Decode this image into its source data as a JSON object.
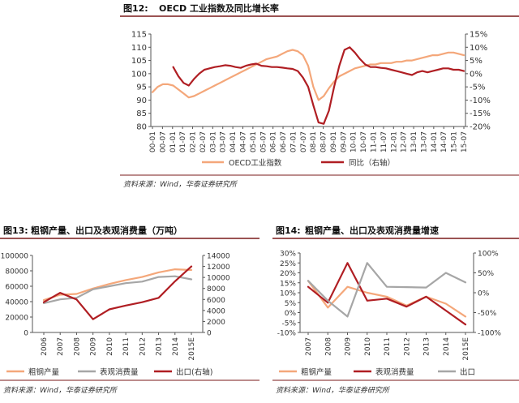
{
  "colors": {
    "orange": "#F4A77A",
    "darkred": "#B01E23",
    "gray": "#A6A6A6",
    "rule": "#7A1A1A"
  },
  "chart_data": [
    {
      "type": "line",
      "title_prefix": "图12:",
      "title": "OECD 工业指数及同比增长率",
      "left_ticks": [
        "115",
        "110",
        "105",
        "100",
        "95",
        "90",
        "85",
        "80"
      ],
      "right_ticks": [
        "15%",
        "10%",
        "5%",
        "0%",
        "-5%",
        "-10%",
        "-15%",
        "-20%"
      ],
      "ylim_left": [
        80,
        115
      ],
      "ylim_right": [
        -20,
        15
      ],
      "x_ticks": [
        "00-01",
        "00-07",
        "01-01",
        "01-07",
        "02-01",
        "02-07",
        "03-01",
        "03-07",
        "04-01",
        "04-07",
        "05-01",
        "05-07",
        "06-01",
        "06-07",
        "07-01",
        "07-07",
        "08-01",
        "08-07",
        "09-01",
        "09-07",
        "10-01",
        "10-07",
        "11-01",
        "11-07",
        "12-01",
        "12-07",
        "13-01",
        "13-07",
        "14-01",
        "14-07",
        "15-01",
        "15-07"
      ],
      "series": [
        {
          "name": "OECD工业指数",
          "axis": "left",
          "color": "orange",
          "values": [
            93,
            95,
            96,
            96,
            95.5,
            94,
            92.5,
            91,
            91.5,
            92.5,
            93.5,
            94.5,
            95.5,
            96.5,
            97.5,
            98.5,
            99.5,
            100.5,
            101.5,
            102.5,
            103.5,
            104.5,
            105.5,
            106,
            106.5,
            107.5,
            108.5,
            109,
            108.5,
            107,
            103,
            95,
            90,
            91.5,
            94.5,
            97,
            99,
            100,
            101,
            102,
            102.5,
            103,
            103.5,
            103.5,
            104,
            104,
            104,
            104.5,
            104.5,
            105,
            105,
            105.5,
            106,
            106.5,
            107,
            107,
            107.5,
            108,
            108,
            107.5,
            107
          ]
        },
        {
          "name": "同比（右轴）",
          "axis": "right",
          "color": "darkred",
          "values": [
            null,
            null,
            null,
            null,
            2.5,
            -1,
            -3.5,
            -4.5,
            -2,
            0,
            1.5,
            2,
            2.5,
            2.8,
            3.2,
            3,
            2.5,
            2.2,
            3,
            3.5,
            3.8,
            3,
            2.8,
            2.5,
            2.5,
            2.3,
            2,
            1.8,
            1,
            -1.5,
            -5,
            -12,
            -18.5,
            -19,
            -14,
            -5,
            3,
            9,
            10,
            8,
            5.5,
            3.5,
            2.5,
            2.5,
            2.2,
            2,
            1.5,
            1,
            0.5,
            0,
            -0.5,
            0.5,
            1,
            0.5,
            1,
            1.5,
            2,
            2,
            1.5,
            1.5,
            1
          ]
        }
      ],
      "legend": [
        "OECD工业指数",
        "同比（右轴）"
      ],
      "source": "资料来源：Wind，华泰证券研究所"
    },
    {
      "type": "line",
      "title_prefix": "图13:",
      "title": "粗钢产量、出口及表观消费量（万吨）",
      "categories": [
        "2006",
        "2007",
        "2008",
        "2009",
        "2010",
        "2011",
        "2012",
        "2013",
        "2014",
        "2015E"
      ],
      "left_ticks": [
        "100000",
        "80000",
        "60000",
        "40000",
        "20000",
        "0"
      ],
      "right_ticks": [
        "14000",
        "12000",
        "10000",
        "8000",
        "6000",
        "4000",
        "2000",
        "0"
      ],
      "ylim_left": [
        0,
        100000
      ],
      "ylim_right": [
        0,
        14000
      ],
      "series": [
        {
          "name": "粗钢产量",
          "axis": "left",
          "color": "orange",
          "values": [
            42000,
            49000,
            50000,
            57000,
            63000,
            68000,
            72000,
            78000,
            82000,
            81000
          ]
        },
        {
          "name": "表观消费量",
          "axis": "left",
          "color": "gray",
          "values": [
            38000,
            43000,
            45000,
            56000,
            60000,
            64000,
            66000,
            72000,
            73000,
            69000
          ]
        },
        {
          "name": "出口(右轴)",
          "axis": "right",
          "color": "darkred",
          "values": [
            5500,
            7200,
            6000,
            2400,
            4200,
            4900,
            5500,
            6300,
            9300,
            12000
          ]
        }
      ],
      "legend": [
        "粗钢产量",
        "表观消费量",
        "出口(右轴)"
      ],
      "source": "资料来源：Wind，华泰证券研究所"
    },
    {
      "type": "line",
      "title_prefix": "图14:",
      "title": "粗钢产量、出口及表观消费量增速",
      "categories": [
        "2007",
        "2008",
        "2009",
        "2010",
        "2011",
        "2012",
        "2013",
        "2014",
        "2015E"
      ],
      "left_ticks": [
        "30%",
        "25%",
        "20%",
        "15%",
        "10%",
        "5%",
        "0%",
        "-5%",
        "-10%"
      ],
      "right_ticks": [
        "100%",
        "50%",
        "0%",
        "-50%",
        "-100%"
      ],
      "ylim_left": [
        -10,
        30
      ],
      "ylim_right": [
        -100,
        100
      ],
      "series": [
        {
          "name": "粗钢产量",
          "axis": "left",
          "color": "orange",
          "values": [
            16,
            2.5,
            13,
            10,
            8,
            3.5,
            8,
            4.5,
            -2
          ]
        },
        {
          "name": "表观消费量",
          "axis": "left",
          "color": "darkred",
          "values": [
            13,
            5,
            25,
            6,
            7,
            3,
            8,
            1,
            -6
          ]
        },
        {
          "name": "出口",
          "axis": "right",
          "color": "gray",
          "values": [
            30,
            -20,
            -60,
            75,
            15,
            14,
            13,
            50,
            26
          ]
        }
      ],
      "legend": [
        "粗钢产量",
        "表观消费量",
        "出口"
      ],
      "source": "资料来源：Wind，华泰证券研究所"
    }
  ]
}
